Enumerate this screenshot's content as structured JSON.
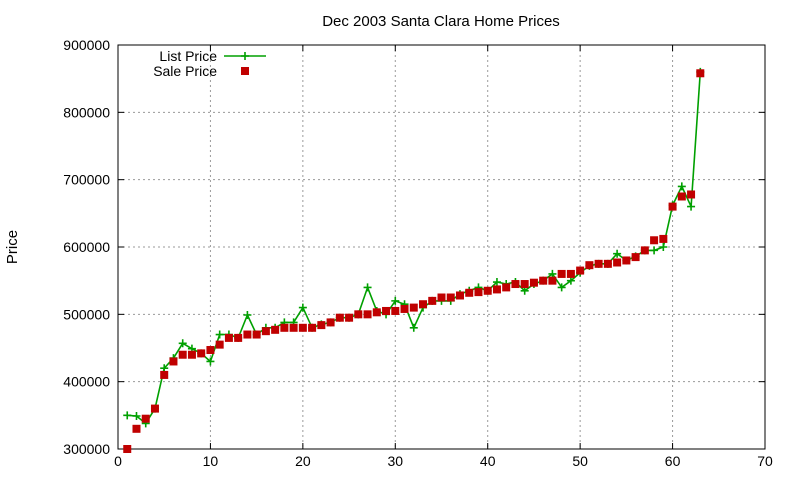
{
  "chart_data": {
    "type": "line",
    "title": "Dec 2003 Santa Clara Home Prices",
    "xlabel": "",
    "ylabel": "Price",
    "xlim": [
      0,
      70
    ],
    "ylim": [
      300000,
      900000
    ],
    "xticks": [
      0,
      10,
      20,
      30,
      40,
      50,
      60,
      70
    ],
    "yticks": [
      300000,
      400000,
      500000,
      600000,
      700000,
      800000,
      900000
    ],
    "grid": true,
    "legend_position": "top-left",
    "series": [
      {
        "name": "List Price",
        "style": "line-plus",
        "color": "#00a000",
        "x": [
          1,
          2,
          3,
          4,
          5,
          6,
          7,
          8,
          9,
          10,
          11,
          12,
          13,
          14,
          15,
          16,
          17,
          18,
          19,
          20,
          21,
          22,
          23,
          24,
          25,
          26,
          27,
          28,
          29,
          30,
          31,
          32,
          33,
          34,
          35,
          36,
          37,
          38,
          39,
          40,
          41,
          42,
          43,
          44,
          45,
          46,
          47,
          48,
          49,
          50,
          51,
          52,
          53,
          54,
          55,
          56,
          57,
          58,
          59,
          60,
          61,
          62,
          63
        ],
        "values": [
          350000,
          349000,
          338000,
          360000,
          420000,
          435000,
          457000,
          449000,
          442000,
          430000,
          470000,
          470000,
          465000,
          499000,
          470000,
          480000,
          480000,
          488000,
          488000,
          510000,
          480000,
          485000,
          488000,
          495000,
          495000,
          500000,
          540000,
          505000,
          500000,
          520000,
          515000,
          480000,
          510000,
          520000,
          520000,
          520000,
          530000,
          535000,
          540000,
          535000,
          548000,
          545000,
          548000,
          535000,
          545000,
          550000,
          560000,
          540000,
          550000,
          562000,
          572000,
          575000,
          575000,
          590000,
          580000,
          586000,
          595000,
          595000,
          600000,
          662000,
          690000,
          660000,
          860000
        ]
      },
      {
        "name": "Sale Price",
        "style": "square-markers",
        "color": "#c00000",
        "x": [
          1,
          2,
          3,
          4,
          5,
          6,
          7,
          8,
          9,
          10,
          11,
          12,
          13,
          14,
          15,
          16,
          17,
          18,
          19,
          20,
          21,
          22,
          23,
          24,
          25,
          26,
          27,
          28,
          29,
          30,
          31,
          32,
          33,
          34,
          35,
          36,
          37,
          38,
          39,
          40,
          41,
          42,
          43,
          44,
          45,
          46,
          47,
          48,
          49,
          50,
          51,
          52,
          53,
          54,
          55,
          56,
          57,
          58,
          59,
          60,
          61,
          62,
          63
        ],
        "values": [
          300000,
          330000,
          345000,
          360000,
          410000,
          430000,
          440000,
          440000,
          442000,
          447000,
          455000,
          465000,
          465000,
          470000,
          470000,
          475000,
          477000,
          480000,
          480000,
          480000,
          480000,
          484000,
          488000,
          495000,
          495000,
          500000,
          500000,
          503000,
          505000,
          505000,
          508000,
          510000,
          515000,
          520000,
          525000,
          525000,
          528000,
          532000,
          533000,
          535000,
          537000,
          540000,
          545000,
          545000,
          547000,
          550000,
          550000,
          560000,
          560000,
          565000,
          573000,
          575000,
          575000,
          577000,
          580000,
          585000,
          595000,
          610000,
          612000,
          660000,
          675000,
          678000,
          858000
        ]
      }
    ]
  }
}
